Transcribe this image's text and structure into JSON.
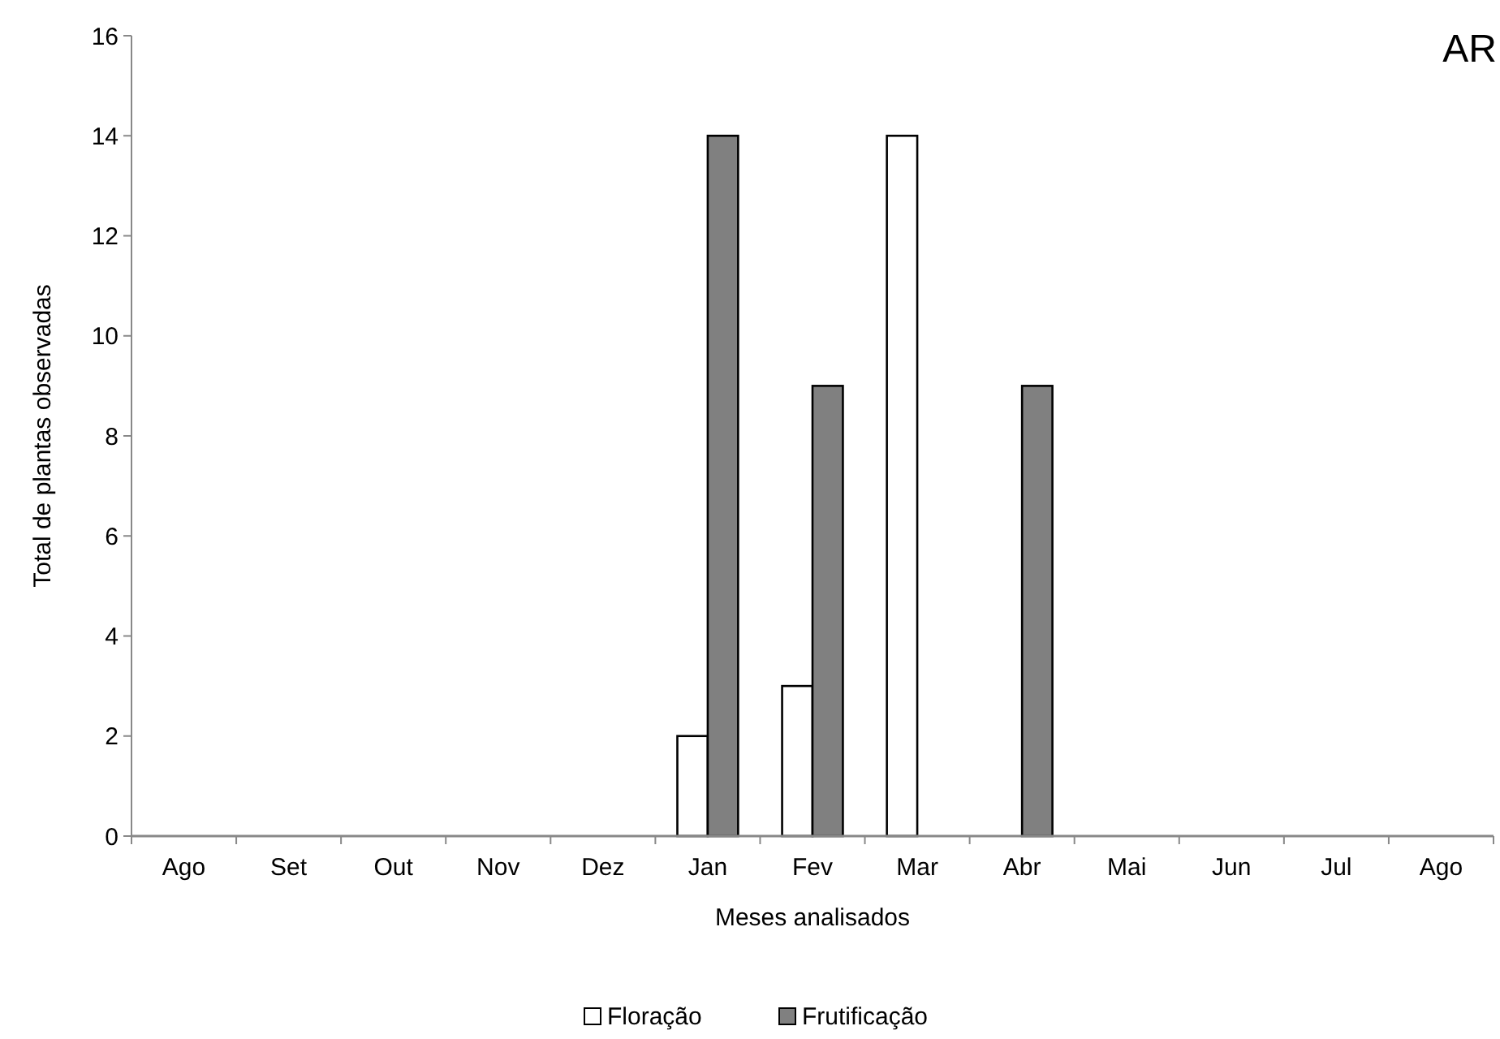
{
  "chart_data": {
    "type": "bar",
    "title": "AR",
    "xlabel": "Meses analisados",
    "ylabel": "Total de plantas observadas",
    "categories": [
      "Ago",
      "Set",
      "Out",
      "Nov",
      "Dez",
      "Jan",
      "Fev",
      "Mar",
      "Abr",
      "Mai",
      "Jun",
      "Jul",
      "Ago"
    ],
    "series": [
      {
        "name": "Floração",
        "color": "#ffffff",
        "values": [
          0,
          0,
          0,
          0,
          0,
          2,
          3,
          14,
          0,
          0,
          0,
          0,
          0
        ]
      },
      {
        "name": "Frutificação",
        "color": "#808080",
        "values": [
          0,
          0,
          0,
          0,
          0,
          14,
          9,
          0,
          9,
          0,
          0,
          0,
          0
        ]
      }
    ],
    "ylim": [
      0,
      16
    ],
    "yticks": [
      0,
      2,
      4,
      6,
      8,
      10,
      12,
      14,
      16
    ],
    "grid": false,
    "legend": "bottom"
  }
}
